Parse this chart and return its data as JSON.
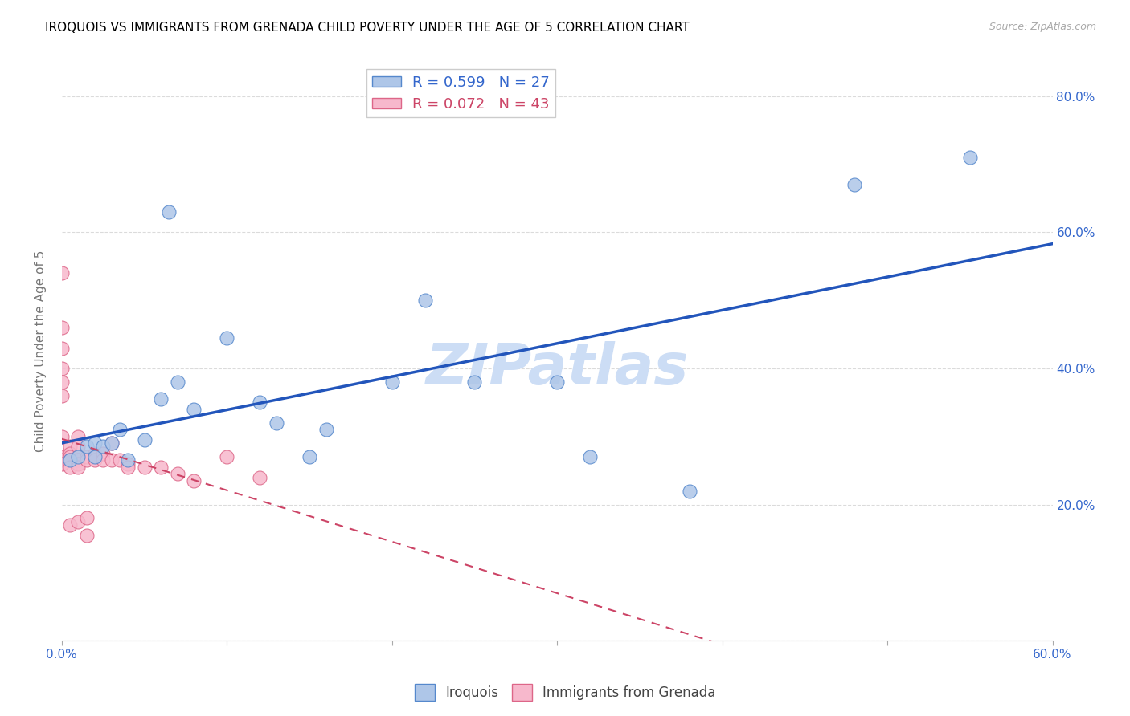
{
  "title": "IROQUOIS VS IMMIGRANTS FROM GRENADA CHILD POVERTY UNDER THE AGE OF 5 CORRELATION CHART",
  "source": "Source: ZipAtlas.com",
  "ylabel": "Child Poverty Under the Age of 5",
  "xlim": [
    0.0,
    0.6
  ],
  "ylim": [
    0.0,
    0.85
  ],
  "xticks": [
    0.0,
    0.1,
    0.2,
    0.3,
    0.4,
    0.5,
    0.6
  ],
  "yticks": [
    0.0,
    0.2,
    0.4,
    0.6,
    0.8
  ],
  "ytick_labels": [
    "",
    "20.0%",
    "40.0%",
    "60.0%",
    "80.0%"
  ],
  "xtick_labels": [
    "0.0%",
    "",
    "",
    "",
    "",
    "",
    "60.0%"
  ],
  "series1_name": "Iroquois",
  "series1_R": 0.599,
  "series1_N": 27,
  "series1_color": "#aec6e8",
  "series1_edge_color": "#5588cc",
  "series1_line_color": "#2255bb",
  "series2_name": "Immigrants from Grenada",
  "series2_R": 0.072,
  "series2_N": 43,
  "series2_color": "#f7b8cc",
  "series2_edge_color": "#dd6688",
  "series2_line_color": "#cc4466",
  "watermark": "ZIPatlas",
  "watermark_color": "#ccddf5",
  "iroquois_x": [
    0.005,
    0.01,
    0.015,
    0.02,
    0.02,
    0.025,
    0.03,
    0.035,
    0.04,
    0.05,
    0.06,
    0.065,
    0.07,
    0.08,
    0.1,
    0.12,
    0.13,
    0.15,
    0.16,
    0.2,
    0.22,
    0.25,
    0.3,
    0.32,
    0.38,
    0.48,
    0.55
  ],
  "iroquois_y": [
    0.265,
    0.27,
    0.285,
    0.27,
    0.29,
    0.285,
    0.29,
    0.31,
    0.265,
    0.295,
    0.355,
    0.63,
    0.38,
    0.34,
    0.445,
    0.35,
    0.32,
    0.27,
    0.31,
    0.38,
    0.5,
    0.38,
    0.38,
    0.27,
    0.22,
    0.67,
    0.71
  ],
  "grenada_x": [
    0.0,
    0.0,
    0.0,
    0.0,
    0.0,
    0.0,
    0.0,
    0.0,
    0.0,
    0.0,
    0.005,
    0.005,
    0.005,
    0.005,
    0.005,
    0.005,
    0.01,
    0.01,
    0.01,
    0.01,
    0.01,
    0.01,
    0.01,
    0.015,
    0.015,
    0.015,
    0.015,
    0.02,
    0.02,
    0.02,
    0.025,
    0.025,
    0.03,
    0.03,
    0.035,
    0.04,
    0.04,
    0.05,
    0.06,
    0.07,
    0.08,
    0.1,
    0.12
  ],
  "grenada_y": [
    0.54,
    0.46,
    0.43,
    0.4,
    0.38,
    0.36,
    0.3,
    0.27,
    0.265,
    0.26,
    0.285,
    0.275,
    0.27,
    0.265,
    0.255,
    0.17,
    0.3,
    0.285,
    0.27,
    0.265,
    0.26,
    0.255,
    0.175,
    0.27,
    0.265,
    0.18,
    0.155,
    0.275,
    0.27,
    0.265,
    0.275,
    0.265,
    0.29,
    0.265,
    0.265,
    0.26,
    0.255,
    0.255,
    0.255,
    0.245,
    0.235,
    0.27,
    0.24
  ],
  "title_fontsize": 11,
  "tick_color": "#3366cc",
  "grid_color": "#cccccc"
}
